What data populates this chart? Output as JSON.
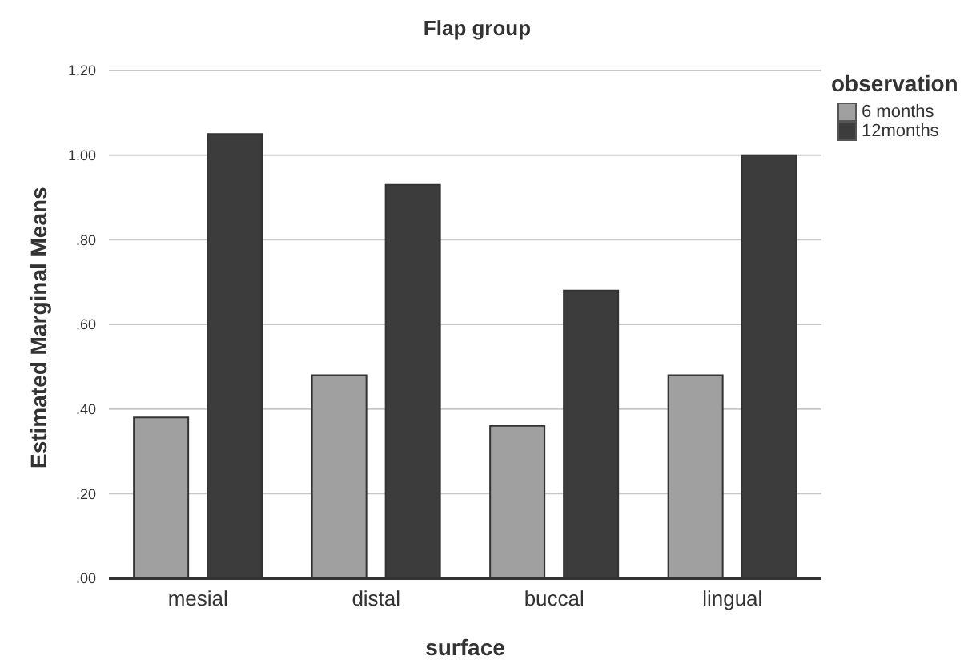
{
  "chart_data": {
    "type": "bar",
    "title": "Flap group",
    "xlabel": "surface",
    "ylabel": "Estimated Marginal Means",
    "legend_title": "observation",
    "categories": [
      "mesial",
      "distal",
      "buccal",
      "lingual"
    ],
    "series": [
      {
        "name": "6 months",
        "color": "#a0a0a0",
        "values": [
          0.38,
          0.48,
          0.36,
          0.48
        ]
      },
      {
        "name": "12months",
        "color": "#3c3c3c",
        "values": [
          1.05,
          0.93,
          0.68,
          1.0
        ]
      }
    ],
    "ylim": [
      0,
      1.2
    ],
    "yticks": [
      {
        "value": 0,
        "label": ".00"
      },
      {
        "value": 0.2,
        "label": ".20"
      },
      {
        "value": 0.4,
        "label": ".40"
      },
      {
        "value": 0.6,
        "label": ".60"
      },
      {
        "value": 0.8,
        "label": ".80"
      },
      {
        "value": 1,
        "label": "1.00"
      },
      {
        "value": 1.2,
        "label": "1.20"
      }
    ],
    "grid": "y",
    "legend": "top right"
  }
}
